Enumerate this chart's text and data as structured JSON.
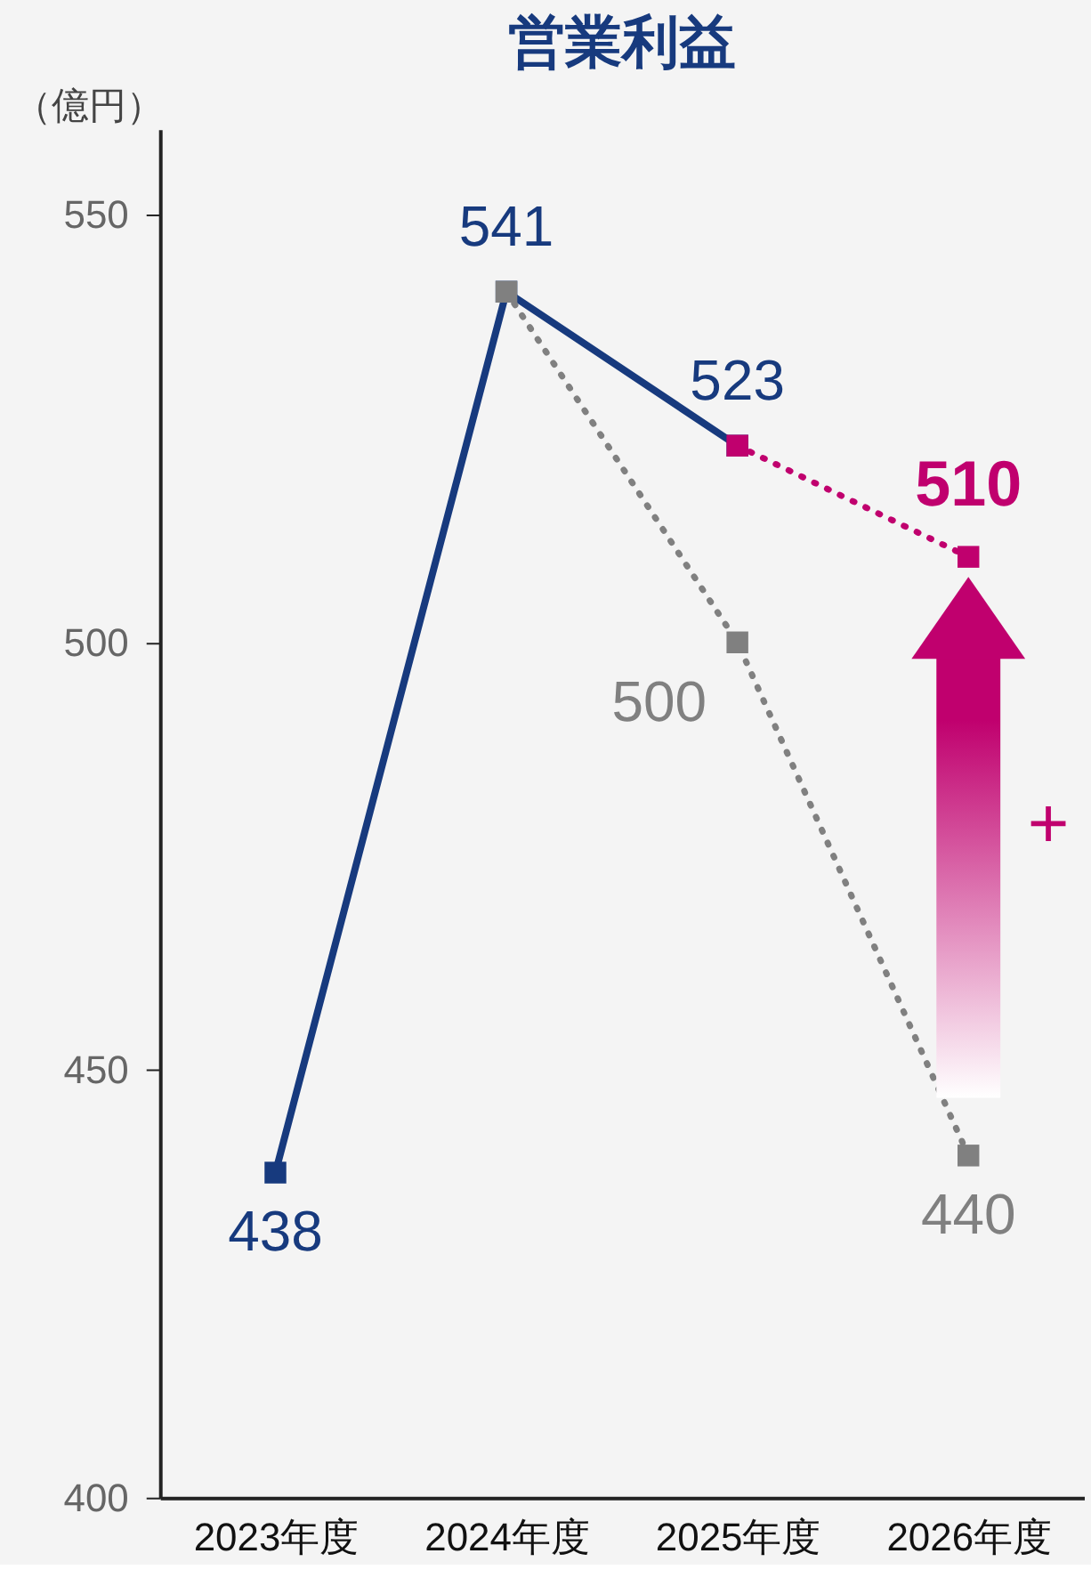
{
  "chart_data": {
    "type": "line",
    "title": "営業利益",
    "ylabel": "（億円）",
    "categories": [
      "2023年度",
      "2024年度",
      "2025年度",
      "2026年度"
    ],
    "series": [
      {
        "color": "#173a7e",
        "values": [
          438,
          541,
          523,
          null
        ],
        "value_labels": [
          "438",
          "541",
          "523",
          null
        ],
        "line_style": "solid"
      },
      {
        "color": "#c0006e",
        "values": [
          null,
          null,
          523,
          510
        ],
        "value_labels": [
          null,
          null,
          null,
          "510"
        ],
        "line_style": "dotted"
      },
      {
        "color": "#808080",
        "values": [
          null,
          541,
          500,
          440
        ],
        "value_labels": [
          null,
          null,
          "500",
          "440"
        ],
        "line_style": "dotted"
      }
    ],
    "ylim": [
      400,
      560
    ],
    "yticks": [
      400,
      450,
      500,
      550
    ],
    "marker": "square",
    "grid": false,
    "annotations": [
      "+"
    ]
  }
}
